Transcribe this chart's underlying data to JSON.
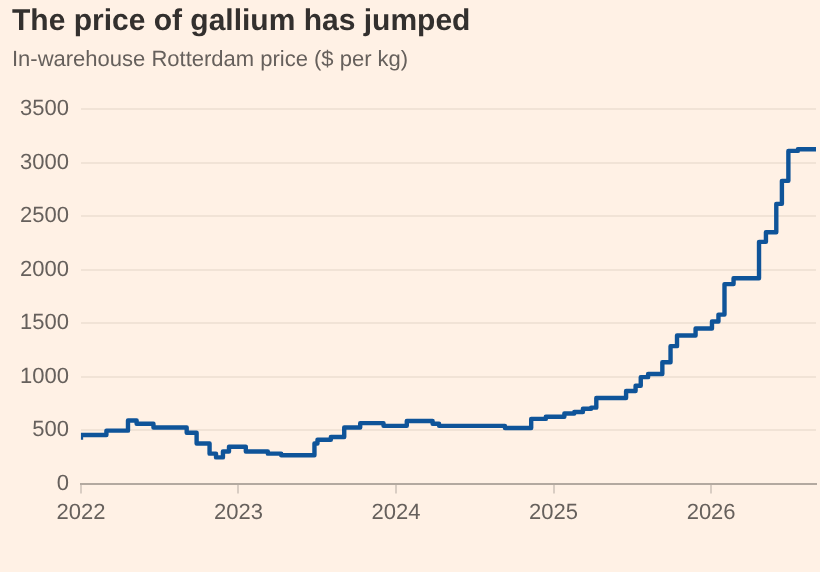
{
  "chart_data": {
    "type": "step",
    "title": "The price of gallium has jumped",
    "subtitle": "In-warehouse Rotterdam price ($ per kg)",
    "x": [
      "2022-01-01",
      "2022-03-01",
      "2022-04-20",
      "2022-05-10",
      "2022-06-18",
      "2022-09-03",
      "2022-09-26",
      "2022-10-26",
      "2022-11-10",
      "2022-11-26",
      "2022-12-10",
      "2023-01-18",
      "2023-03-10",
      "2023-04-10",
      "2023-06-26",
      "2023-07-03",
      "2023-08-03",
      "2023-09-03",
      "2023-10-10",
      "2023-12-03",
      "2024-01-26",
      "2024-03-26",
      "2024-04-10",
      "2024-09-10",
      "2024-11-10",
      "2024-12-14",
      "2025-01-26",
      "2025-02-18",
      "2025-03-10",
      "2025-03-29",
      "2025-04-10",
      "2025-06-18",
      "2025-07-10",
      "2025-07-22",
      "2025-08-08",
      "2025-09-10",
      "2025-09-29",
      "2025-10-14",
      "2025-11-26",
      "2026-01-03",
      "2026-01-18",
      "2026-02-01",
      "2026-02-22",
      "2026-04-22",
      "2026-05-08",
      "2026-06-01",
      "2026-06-14",
      "2026-06-29",
      "2026-07-21",
      "2026-09-01"
    ],
    "series": [
      {
        "color": "#0f5499",
        "values": [
          410,
          455,
          495,
          590,
          560,
          525,
          475,
          375,
          280,
          245,
          300,
          345,
          300,
          280,
          265,
          375,
          410,
          435,
          525,
          565,
          540,
          585,
          560,
          540,
          520,
          605,
          625,
          655,
          670,
          700,
          710,
          800,
          865,
          915,
          995,
          1025,
          1135,
          1285,
          1385,
          1450,
          1515,
          1580,
          1865,
          1920,
          2260,
          2350,
          2615,
          2830,
          3110,
          3125
        ]
      }
    ],
    "xlim": [
      "2022-01-01",
      "2026-09-01"
    ],
    "xticks": [
      "2022",
      "2023",
      "2024",
      "2025",
      "2026"
    ],
    "ylim": [
      0,
      3500
    ],
    "yticks": [
      0,
      500,
      1000,
      1500,
      2000,
      2500,
      3000,
      3500
    ],
    "grid": "y",
    "marker": "none",
    "line_style": "solid"
  }
}
